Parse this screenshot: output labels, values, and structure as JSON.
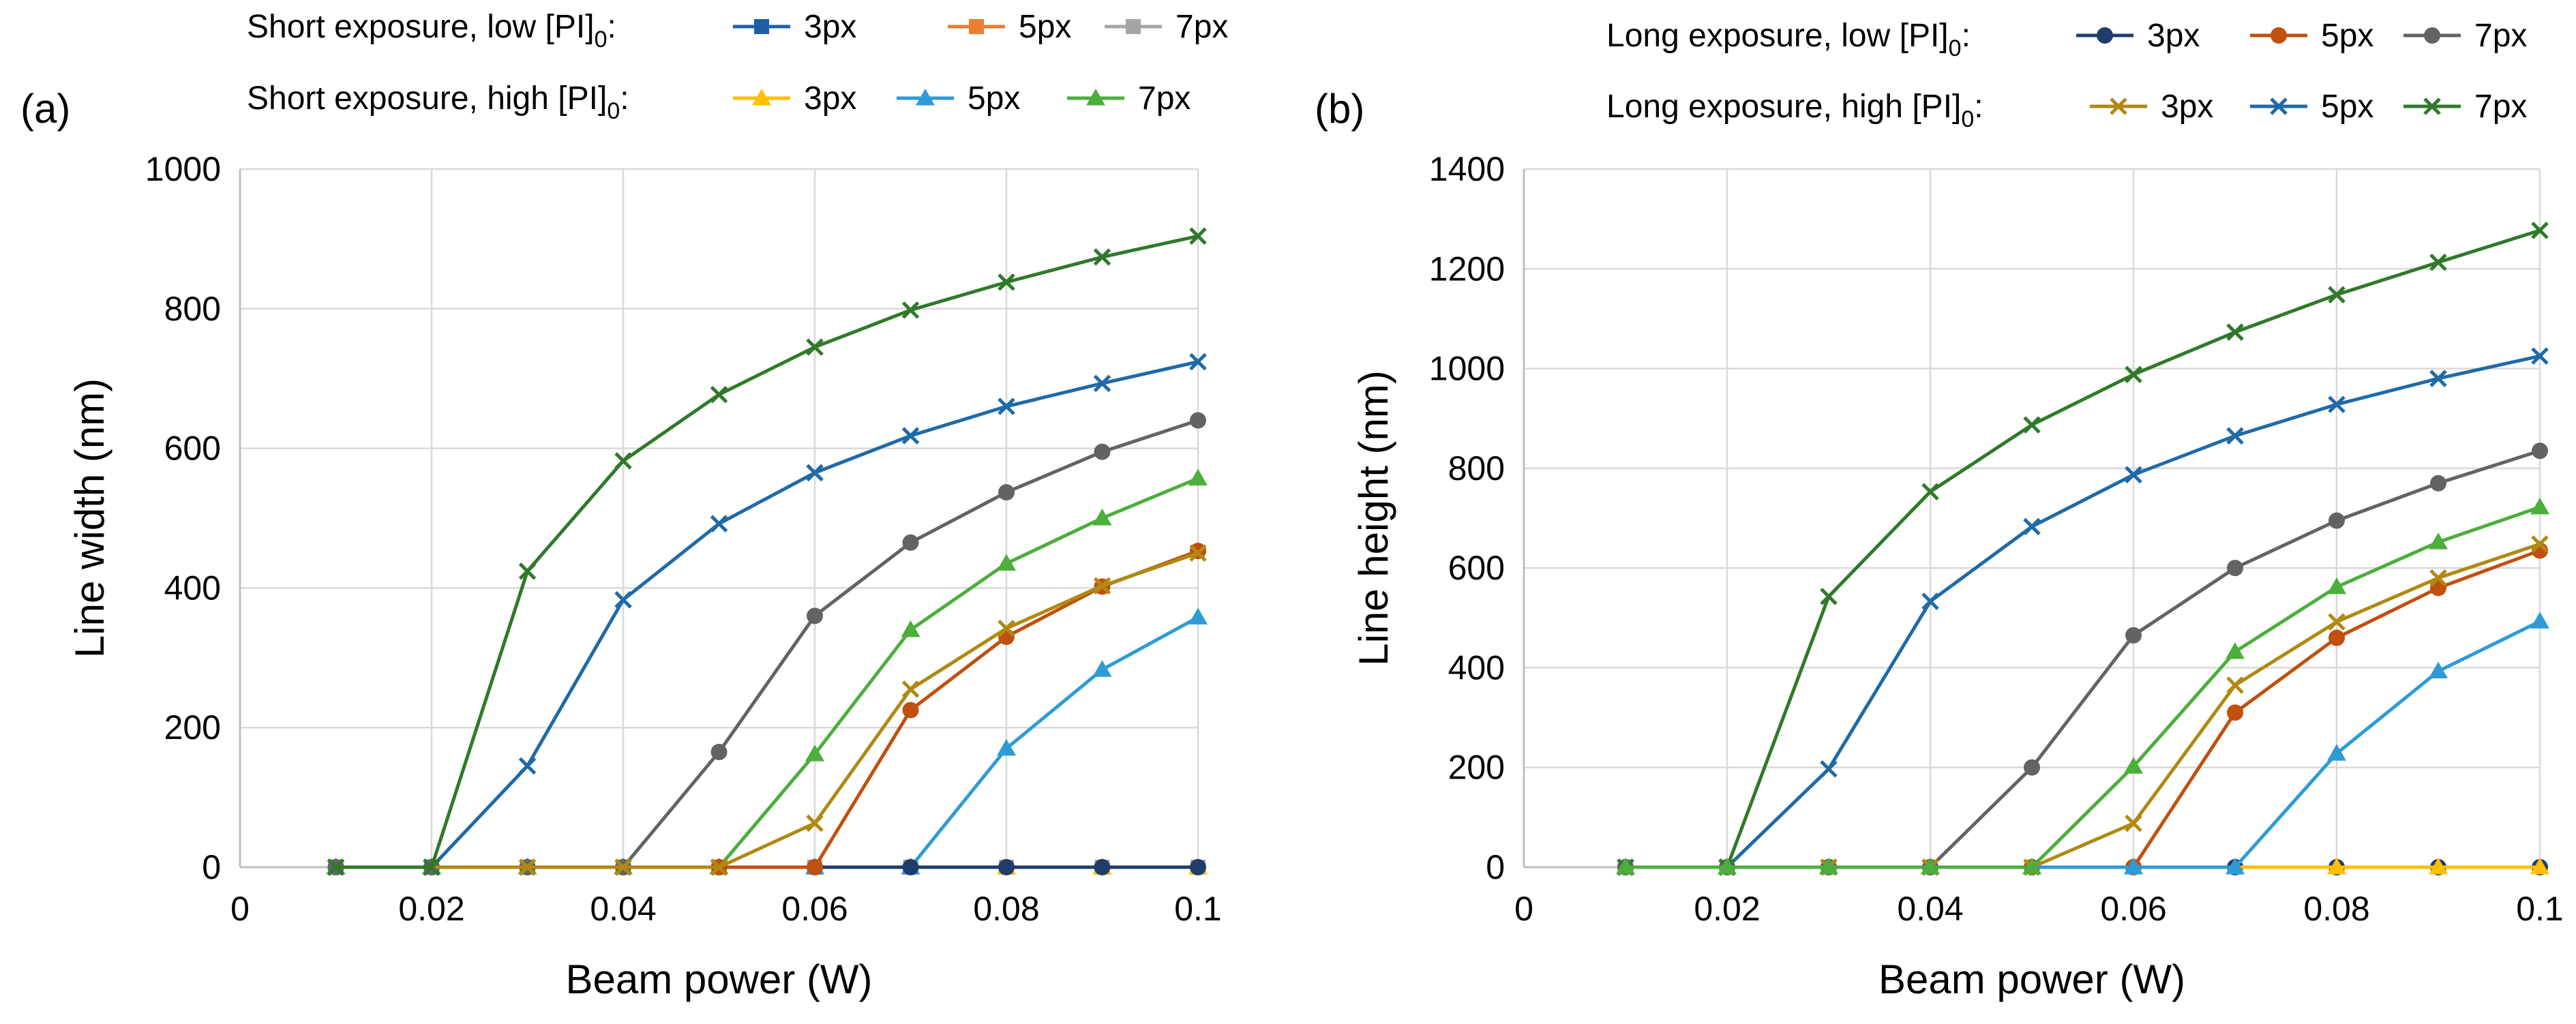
{
  "chart_data": [
    {
      "panel_label": "(a)",
      "type": "line",
      "xlabel": "Beam power (W)",
      "ylabel": "Line width (nm)",
      "xlim": [
        0,
        0.1
      ],
      "ylim": [
        0,
        1000
      ],
      "x_ticks": [
        "0",
        "0.02",
        "0.04",
        "0.06",
        "0.08",
        "0.1"
      ],
      "y_ticks": [
        "0",
        "200",
        "400",
        "600",
        "800",
        "1000"
      ],
      "grid": true,
      "x": [
        0.01,
        0.02,
        0.03,
        0.04,
        0.05,
        0.06,
        0.07,
        0.08,
        0.09,
        0.1
      ],
      "legend_rows": [
        {
          "label": "Short exposure, low [PI]",
          "subscript": "0",
          "suffix": ":"
        },
        {
          "label": "Short exposure, high [PI]",
          "subscript": "0",
          "suffix": ":"
        }
      ],
      "series": [
        {
          "name": "3px",
          "group": 0,
          "color": "#1f5fa8",
          "marker": "square",
          "values": [
            0,
            0,
            0,
            0,
            0,
            0,
            0,
            0,
            0,
            0
          ]
        },
        {
          "name": "5px",
          "group": 0,
          "color": "#ed7d31",
          "marker": "square",
          "values": [
            0,
            0,
            0,
            0,
            0,
            0,
            0,
            0,
            0,
            0
          ]
        },
        {
          "name": "7px",
          "group": 0,
          "color": "#a5a5a5",
          "marker": "square",
          "values": [
            0,
            0,
            0,
            0,
            0,
            0,
            0,
            0,
            0,
            0
          ]
        },
        {
          "name": "3px",
          "group": 1,
          "color": "#ffc000",
          "marker": "triangle",
          "values": [
            0,
            0,
            0,
            0,
            0,
            0,
            0,
            0,
            0,
            0
          ]
        },
        {
          "name": "5px",
          "group": 1,
          "color": "#2e9bd6",
          "marker": "triangle",
          "values": [
            0,
            0,
            0,
            0,
            0,
            0,
            0,
            170,
            283,
            358
          ]
        },
        {
          "name": "7px",
          "group": 1,
          "color": "#4cae3c",
          "marker": "triangle",
          "values": [
            0,
            0,
            0,
            0,
            0,
            162,
            340,
            435,
            500,
            557
          ]
        },
        {
          "name": "Long 3px",
          "group": -1,
          "color": "#1f3d6b",
          "marker": "circle",
          "values": [
            0,
            0,
            0,
            0,
            0,
            0,
            0,
            0,
            0,
            0
          ]
        },
        {
          "name": "Long 5px",
          "group": -1,
          "color": "#c0500e",
          "marker": "circle",
          "values": [
            0,
            0,
            0,
            0,
            0,
            0,
            225,
            330,
            402,
            453
          ]
        },
        {
          "name": "Long 7px",
          "group": -1,
          "color": "#636363",
          "marker": "circle",
          "values": [
            0,
            0,
            0,
            0,
            165,
            360,
            465,
            537,
            595,
            640
          ]
        },
        {
          "name": "Long high 3px",
          "group": -1,
          "color": "#b08912",
          "marker": "x",
          "values": [
            0,
            0,
            0,
            0,
            0,
            63,
            255,
            342,
            403,
            450
          ]
        },
        {
          "name": "Long high 5px",
          "group": -1,
          "color": "#1f6aa8",
          "marker": "x",
          "values": [
            0,
            0,
            145,
            383,
            492,
            565,
            618,
            660,
            693,
            724
          ]
        },
        {
          "name": "Long high 7px",
          "group": -1,
          "color": "#2f7a2a",
          "marker": "x",
          "values": [
            0,
            0,
            424,
            582,
            677,
            745,
            798,
            838,
            874,
            904
          ]
        }
      ]
    },
    {
      "panel_label": "(b)",
      "type": "line",
      "xlabel": "Beam power (W)",
      "ylabel": "Line height (nm)",
      "xlim": [
        0,
        0.1
      ],
      "ylim": [
        0,
        1400
      ],
      "x_ticks": [
        "0",
        "0.02",
        "0.04",
        "0.06",
        "0.08",
        "0.1"
      ],
      "y_ticks": [
        "0",
        "200",
        "400",
        "600",
        "800",
        "1000",
        "1200",
        "1400"
      ],
      "grid": true,
      "x": [
        0.01,
        0.02,
        0.03,
        0.04,
        0.05,
        0.06,
        0.07,
        0.08,
        0.09,
        0.1
      ],
      "legend_rows": [
        {
          "label": "Long exposure, low [PI]",
          "subscript": "0",
          "suffix": ":"
        },
        {
          "label": "Long exposure, high [PI]",
          "subscript": "0",
          "suffix": ":"
        }
      ],
      "series": [
        {
          "name": "3px",
          "group": 0,
          "color": "#1f3d6b",
          "marker": "circle",
          "values": [
            0,
            0,
            0,
            0,
            0,
            0,
            0,
            0,
            0,
            0
          ]
        },
        {
          "name": "5px",
          "group": 0,
          "color": "#c0500e",
          "marker": "circle",
          "values": [
            0,
            0,
            0,
            0,
            0,
            0,
            310,
            460,
            560,
            635
          ]
        },
        {
          "name": "7px",
          "group": 0,
          "color": "#636363",
          "marker": "circle",
          "values": [
            0,
            0,
            0,
            0,
            200,
            465,
            600,
            695,
            770,
            835
          ]
        },
        {
          "name": "3px",
          "group": 1,
          "color": "#b08912",
          "marker": "x",
          "values": [
            0,
            0,
            0,
            0,
            0,
            88,
            365,
            492,
            580,
            648
          ]
        },
        {
          "name": "5px",
          "group": 1,
          "color": "#1f6aa8",
          "marker": "x",
          "values": [
            0,
            0,
            197,
            533,
            683,
            787,
            865,
            928,
            980,
            1025
          ]
        },
        {
          "name": "7px",
          "group": 1,
          "color": "#2f7a2a",
          "marker": "x",
          "values": [
            0,
            0,
            543,
            753,
            887,
            988,
            1073,
            1148,
            1213,
            1277
          ]
        },
        {
          "name": "Short high 3px",
          "group": -1,
          "color": "#ffc000",
          "marker": "triangle",
          "values": [
            0,
            0,
            0,
            0,
            0,
            0,
            0,
            0,
            0,
            0
          ]
        },
        {
          "name": "Short high 5px",
          "group": -1,
          "color": "#2e9bd6",
          "marker": "triangle",
          "values": [
            0,
            0,
            0,
            0,
            0,
            0,
            0,
            228,
            393,
            493
          ]
        },
        {
          "name": "Short high 7px",
          "group": -1,
          "color": "#4cae3c",
          "marker": "triangle",
          "values": [
            0,
            0,
            0,
            0,
            0,
            202,
            432,
            562,
            652,
            722
          ]
        }
      ]
    }
  ]
}
